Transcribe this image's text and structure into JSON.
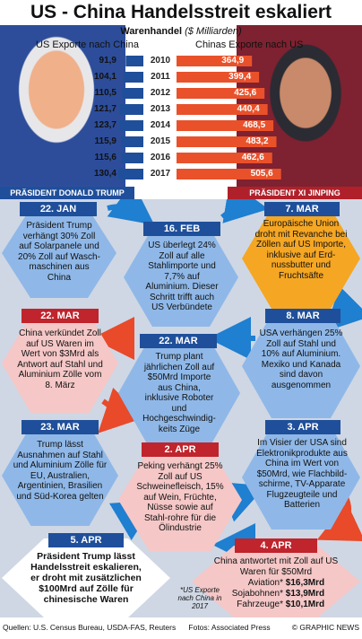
{
  "title": "US - China Handelsstreit eskaliert",
  "subhead": {
    "label": "Warenhandel",
    "unit": "($ Milliarden)"
  },
  "legend": {
    "us": "US Exporte nach China",
    "china": "Chinas Exporte nach US"
  },
  "portraits": {
    "left": "PRÄSIDENT DONALD TRUMP",
    "right": "PRÄSIDENT XI JINPING"
  },
  "colors": {
    "us": "#1f4f9a",
    "china": "#e9512a",
    "bg": "#cfd7e4"
  },
  "chart_data": {
    "type": "bar",
    "orientation": "horizontal-diverging",
    "categories": [
      "2010",
      "2011",
      "2012",
      "2013",
      "2014",
      "2015",
      "2016",
      "2017"
    ],
    "series": [
      {
        "name": "US Exporte nach China",
        "values": [
          91.9,
          104.1,
          110.5,
          121.7,
          123.7,
          115.9,
          115.6,
          130.4
        ],
        "labels": [
          "91,9",
          "104,1",
          "110,5",
          "121,7",
          "123,7",
          "115,9",
          "115,6",
          "130,4"
        ]
      },
      {
        "name": "Chinas Exporte nach US",
        "values": [
          364.9,
          399.4,
          425.6,
          440.4,
          468.5,
          483.2,
          462.6,
          505.6
        ],
        "labels": [
          "364,9",
          "399,4",
          "425,6",
          "440,4",
          "468,5",
          "483,2",
          "462,6",
          "505,6"
        ]
      }
    ]
  },
  "events": [
    {
      "date": "22. JAN",
      "text": "Präsident Trump verhängt 30% Zoll auf Solarpanele und 20% Zoll auf Wasch-maschinen aus China"
    },
    {
      "date": "16. FEB",
      "text": "US überlegt 24% Zoll auf alle Stahlimporte und 7,7% auf Aluminium. Dieser Schritt trifft auch US Verbündete"
    },
    {
      "date": "7. MAR",
      "text": "Europäische Union droht mit Revanche bei Zöllen auf US Importe, inklusive auf Erd-nussbutter und Fruchtsäfte"
    },
    {
      "date": "22. MAR",
      "text": "China verkündet Zoll auf US Waren im Wert von $3Mrd als Antwort auf Stahl und Aluminium Zölle vom 8. März"
    },
    {
      "date": "22. MAR",
      "text": "Trump plant jährlichen Zoll auf $50Mrd Importe aus China, inklusive Roboter und Hochgeschwindig-keits Züge"
    },
    {
      "date": "8. MAR",
      "text": "USA verhängen 25% Zoll auf Stahl und 10% auf Aluminium. Mexiko und Kanada sind davon ausgenommen"
    },
    {
      "date": "23. MAR",
      "text": "Trump lässt Ausnahmen auf Stahl und Aluminium Zölle für EU, Australien, Argentinien, Brasilien und Süd-Korea gelten"
    },
    {
      "date": "2. APR",
      "text": "Peking verhängt 25% Zoll auf US Schweinefleisch, 15% auf Wein, Früchte, Nüsse sowie auf Stahl-rohre für die Ölindustrie"
    },
    {
      "date": "3. APR",
      "text": "Im Visier der USA sind Elektronikprodukte aus China im Wert von $50Mrd, wie Flachbild-schirme, TV-Apparate Flugzeugteile und Batterien"
    },
    {
      "date": "5. APR",
      "text": "Präsident Trump lässt Handelsstreit eskalieren, er droht mit zusätzlichen $100Mrd auf Zölle für chinesische Waren"
    },
    {
      "date": "4. APR",
      "text": "China antwortet mit Zoll auf US Waren für $50Mrd"
    }
  ],
  "apr4_items": [
    {
      "label": "Aviation*",
      "value": "$16,3Mrd"
    },
    {
      "label": "Sojabohnen*",
      "value": "$13,9Mrd"
    },
    {
      "label": "Fahrzeuge*",
      "value": "$10,1Mrd"
    }
  ],
  "footnote": "*US Exporte nach China in 2017",
  "sources": "Quellen: U.S. Census Bureau, USDA-FAS, Reuters",
  "photos": "Fotos: Associated Press",
  "credit": "© GRAPHIC NEWS"
}
